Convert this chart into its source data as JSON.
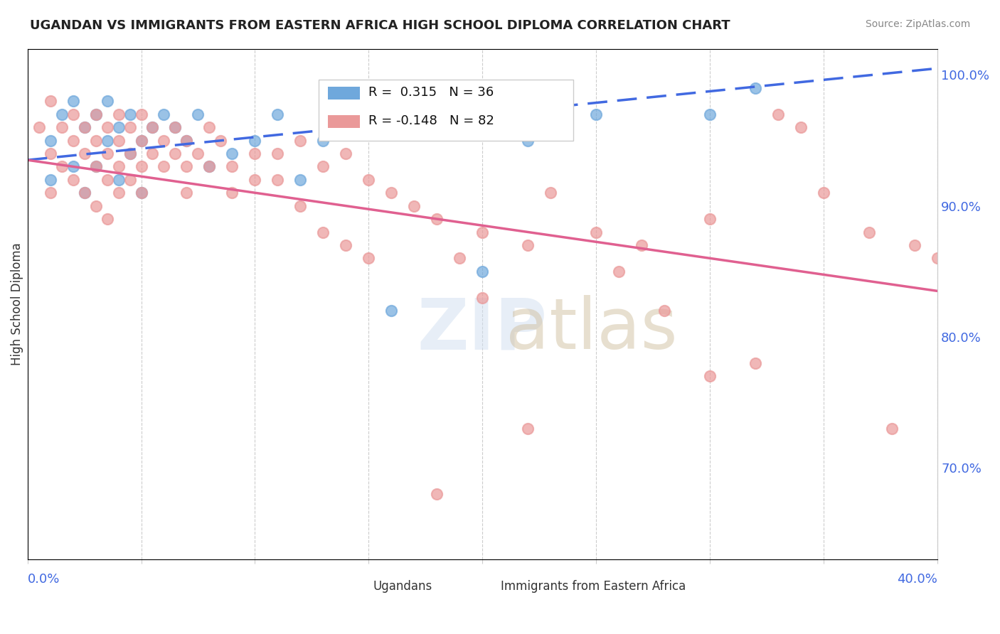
{
  "title": "UGANDAN VS IMMIGRANTS FROM EASTERN AFRICA HIGH SCHOOL DIPLOMA CORRELATION CHART",
  "source": "Source: ZipAtlas.com",
  "xlabel_bottom_left": "0.0%",
  "xlabel_bottom_right": "40.0%",
  "ylabel": "High School Diploma",
  "right_yticks": [
    "100.0%",
    "90.0%",
    "80.0%",
    "70.0%"
  ],
  "right_ytick_vals": [
    1.0,
    0.9,
    0.8,
    0.7
  ],
  "legend_r_blue": "0.315",
  "legend_n_blue": "36",
  "legend_r_pink": "-0.148",
  "legend_n_pink": "82",
  "blue_color": "#6fa8dc",
  "pink_color": "#ea9999",
  "trend_blue": "#4169e1",
  "trend_pink": "#e06090",
  "watermark": "ZIPatlas",
  "xmin": 0.0,
  "xmax": 0.4,
  "ymin": 0.63,
  "ymax": 1.02,
  "blue_dots": [
    [
      0.01,
      0.95
    ],
    [
      0.01,
      0.92
    ],
    [
      0.015,
      0.97
    ],
    [
      0.02,
      0.98
    ],
    [
      0.02,
      0.93
    ],
    [
      0.025,
      0.96
    ],
    [
      0.025,
      0.91
    ],
    [
      0.03,
      0.97
    ],
    [
      0.03,
      0.93
    ],
    [
      0.035,
      0.98
    ],
    [
      0.035,
      0.95
    ],
    [
      0.04,
      0.96
    ],
    [
      0.04,
      0.92
    ],
    [
      0.045,
      0.97
    ],
    [
      0.045,
      0.94
    ],
    [
      0.05,
      0.95
    ],
    [
      0.05,
      0.91
    ],
    [
      0.055,
      0.96
    ],
    [
      0.06,
      0.97
    ],
    [
      0.065,
      0.96
    ],
    [
      0.07,
      0.95
    ],
    [
      0.075,
      0.97
    ],
    [
      0.08,
      0.93
    ],
    [
      0.09,
      0.94
    ],
    [
      0.1,
      0.95
    ],
    [
      0.11,
      0.97
    ],
    [
      0.12,
      0.92
    ],
    [
      0.13,
      0.95
    ],
    [
      0.15,
      0.97
    ],
    [
      0.16,
      0.82
    ],
    [
      0.18,
      0.96
    ],
    [
      0.2,
      0.85
    ],
    [
      0.22,
      0.95
    ],
    [
      0.25,
      0.97
    ],
    [
      0.3,
      0.97
    ],
    [
      0.32,
      0.99
    ]
  ],
  "pink_dots": [
    [
      0.005,
      0.96
    ],
    [
      0.01,
      0.98
    ],
    [
      0.01,
      0.94
    ],
    [
      0.01,
      0.91
    ],
    [
      0.015,
      0.96
    ],
    [
      0.015,
      0.93
    ],
    [
      0.02,
      0.97
    ],
    [
      0.02,
      0.95
    ],
    [
      0.02,
      0.92
    ],
    [
      0.025,
      0.96
    ],
    [
      0.025,
      0.94
    ],
    [
      0.025,
      0.91
    ],
    [
      0.03,
      0.97
    ],
    [
      0.03,
      0.95
    ],
    [
      0.03,
      0.93
    ],
    [
      0.03,
      0.9
    ],
    [
      0.035,
      0.96
    ],
    [
      0.035,
      0.94
    ],
    [
      0.035,
      0.92
    ],
    [
      0.035,
      0.89
    ],
    [
      0.04,
      0.97
    ],
    [
      0.04,
      0.95
    ],
    [
      0.04,
      0.93
    ],
    [
      0.04,
      0.91
    ],
    [
      0.045,
      0.96
    ],
    [
      0.045,
      0.94
    ],
    [
      0.045,
      0.92
    ],
    [
      0.05,
      0.97
    ],
    [
      0.05,
      0.95
    ],
    [
      0.05,
      0.93
    ],
    [
      0.05,
      0.91
    ],
    [
      0.055,
      0.96
    ],
    [
      0.055,
      0.94
    ],
    [
      0.06,
      0.95
    ],
    [
      0.06,
      0.93
    ],
    [
      0.065,
      0.96
    ],
    [
      0.065,
      0.94
    ],
    [
      0.07,
      0.95
    ],
    [
      0.07,
      0.93
    ],
    [
      0.07,
      0.91
    ],
    [
      0.075,
      0.94
    ],
    [
      0.08,
      0.96
    ],
    [
      0.08,
      0.93
    ],
    [
      0.085,
      0.95
    ],
    [
      0.09,
      0.93
    ],
    [
      0.09,
      0.91
    ],
    [
      0.1,
      0.94
    ],
    [
      0.1,
      0.92
    ],
    [
      0.11,
      0.94
    ],
    [
      0.11,
      0.92
    ],
    [
      0.12,
      0.95
    ],
    [
      0.12,
      0.9
    ],
    [
      0.13,
      0.93
    ],
    [
      0.13,
      0.88
    ],
    [
      0.14,
      0.94
    ],
    [
      0.14,
      0.87
    ],
    [
      0.15,
      0.92
    ],
    [
      0.15,
      0.86
    ],
    [
      0.16,
      0.91
    ],
    [
      0.17,
      0.9
    ],
    [
      0.18,
      0.89
    ],
    [
      0.19,
      0.86
    ],
    [
      0.2,
      0.88
    ],
    [
      0.2,
      0.83
    ],
    [
      0.22,
      0.87
    ],
    [
      0.23,
      0.91
    ],
    [
      0.25,
      0.88
    ],
    [
      0.26,
      0.85
    ],
    [
      0.27,
      0.87
    ],
    [
      0.28,
      0.82
    ],
    [
      0.3,
      0.89
    ],
    [
      0.3,
      0.77
    ],
    [
      0.32,
      0.78
    ],
    [
      0.33,
      0.97
    ],
    [
      0.34,
      0.96
    ],
    [
      0.35,
      0.91
    ],
    [
      0.37,
      0.88
    ],
    [
      0.38,
      0.73
    ],
    [
      0.39,
      0.87
    ],
    [
      0.4,
      0.86
    ],
    [
      0.22,
      0.73
    ],
    [
      0.18,
      0.68
    ]
  ]
}
